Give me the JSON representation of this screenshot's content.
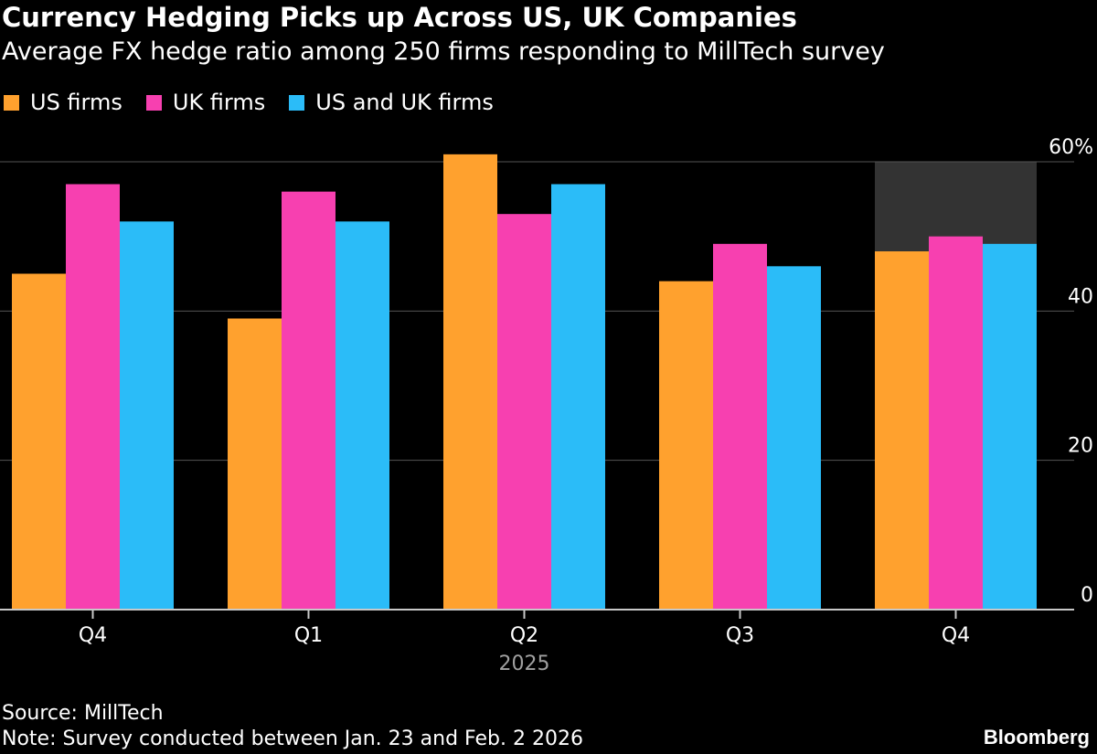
{
  "colors": {
    "background": "#000000",
    "us": "#FFA12E",
    "uk": "#F740B0",
    "combined": "#2BBCF8",
    "grid": "#555555",
    "axis": "#c8c8c8",
    "highlight": "#333333",
    "year": "#a0a0a0"
  },
  "footer": {
    "source": "Source: MillTech",
    "note": "Note: Survey conducted between Jan. 23 and Feb. 2 2026",
    "brand": "Bloomberg"
  },
  "chart_data": {
    "type": "bar",
    "title": "Currency Hedging Picks up Across US, UK Companies",
    "subtitle": "Average FX hedge ratio among 250 firms responding to MillTech survey",
    "categories": [
      "Q4",
      "Q1",
      "Q2",
      "Q3",
      "Q4"
    ],
    "year_label": "2025",
    "series": [
      {
        "name": "US firms",
        "values": [
          45,
          39,
          61,
          44,
          48
        ]
      },
      {
        "name": "UK firms",
        "values": [
          57,
          56,
          53,
          49,
          50
        ]
      },
      {
        "name": "US and UK firms",
        "values": [
          52,
          52,
          57,
          46,
          49
        ]
      }
    ],
    "highlight_category_index": 4,
    "ylim": [
      0,
      60
    ],
    "yticks": [
      0,
      20,
      40,
      60
    ],
    "ytick_labels": [
      "0",
      "20",
      "40",
      "60%"
    ],
    "y_axis_side": "right",
    "grid": true,
    "legend_position": "top-left"
  }
}
